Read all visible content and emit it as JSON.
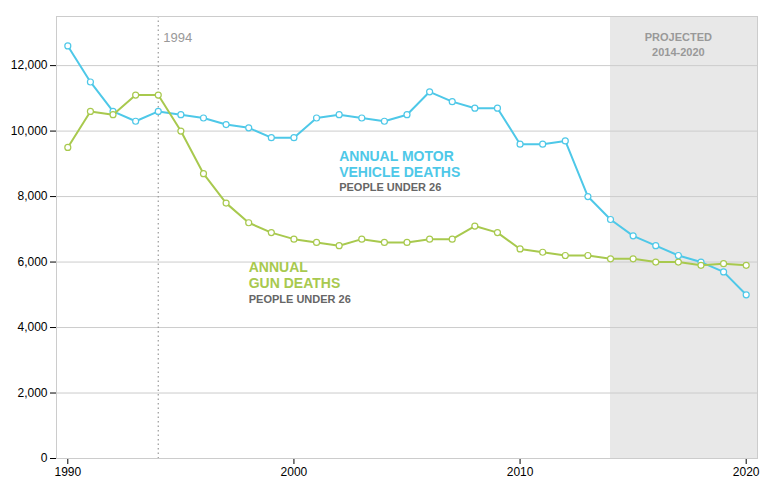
{
  "chart_data": {
    "type": "line",
    "x": [
      1990,
      1991,
      1992,
      1993,
      1994,
      1995,
      1996,
      1997,
      1998,
      1999,
      2000,
      2001,
      2002,
      2003,
      2004,
      2005,
      2006,
      2007,
      2008,
      2009,
      2010,
      2011,
      2012,
      2013,
      2014,
      2015,
      2016,
      2017,
      2018,
      2019,
      2020
    ],
    "series": [
      {
        "color": "#4ec8e8",
        "marker": "circle",
        "values": [
          12600,
          11500,
          10600,
          10300,
          10600,
          10500,
          10400,
          10200,
          10100,
          9800,
          9800,
          10400,
          10500,
          10400,
          10300,
          10500,
          11200,
          10900,
          10700,
          10700,
          9600,
          9600,
          9700,
          8000,
          7300,
          6800,
          6500,
          6200,
          6000,
          5700,
          5000
        ]
      },
      {
        "color": "#a8c94e",
        "marker": "circle",
        "values": [
          9500,
          10600,
          10500,
          11100,
          11100,
          10000,
          8700,
          7800,
          7200,
          6900,
          6700,
          6600,
          6500,
          6700,
          6600,
          6600,
          6700,
          6700,
          7100,
          6900,
          6400,
          6300,
          6200,
          6200,
          6100,
          6100,
          6000,
          6000,
          5900,
          5950,
          5900
        ]
      }
    ],
    "xlim": [
      1989.5,
      2020.5
    ],
    "xticks": [
      1990,
      2000,
      2010,
      2020
    ],
    "ylim": [
      0,
      13500
    ],
    "yticks": [
      0,
      {
        "value": 2000,
        "label": "2,000"
      },
      {
        "value": 4000,
        "label": "4,000"
      },
      {
        "value": 6000,
        "label": "6,000"
      },
      {
        "value": 8000,
        "label": "8,000"
      },
      {
        "value": 10000,
        "label": "10,000"
      },
      {
        "value": 12000,
        "label": "12,000"
      }
    ],
    "grid": true,
    "shaded_regions": [
      {
        "x": [
          2014,
          2020.5
        ],
        "color": "#e8e8e8"
      }
    ],
    "vlines": [
      {
        "x": 1994,
        "color": "#999999",
        "line_style": "dotted"
      }
    ],
    "annotations": [
      {
        "text": "1994",
        "x": 1994,
        "y": 13000,
        "color": "#999999",
        "kind": "marker"
      },
      {
        "text": "ANNUAL MOTOR",
        "x": 2002,
        "y": 9400,
        "color": "#4ec8e8",
        "kind": "label"
      },
      {
        "text": "VEHICLE DEATHS",
        "x": 2002,
        "y": 8900,
        "color": "#4ec8e8",
        "kind": "label"
      },
      {
        "text": "PEOPLE UNDER 26",
        "x": 2002,
        "y": 8400,
        "color": "#666666",
        "kind": "note"
      },
      {
        "text": "ANNUAL",
        "x": 1998,
        "y": 6000,
        "color": "#a8c94e",
        "kind": "label"
      },
      {
        "text": "GUN DEATHS",
        "x": 1998,
        "y": 5500,
        "color": "#a8c94e",
        "kind": "label"
      },
      {
        "text": "PEOPLE UNDER 26",
        "x": 1998,
        "y": 5000,
        "color": "#666666",
        "kind": "note"
      },
      {
        "text": "PROJECTED\n2014-2020",
        "x": 2017,
        "y": 13100,
        "color": "#999999",
        "kind": "region"
      }
    ]
  }
}
